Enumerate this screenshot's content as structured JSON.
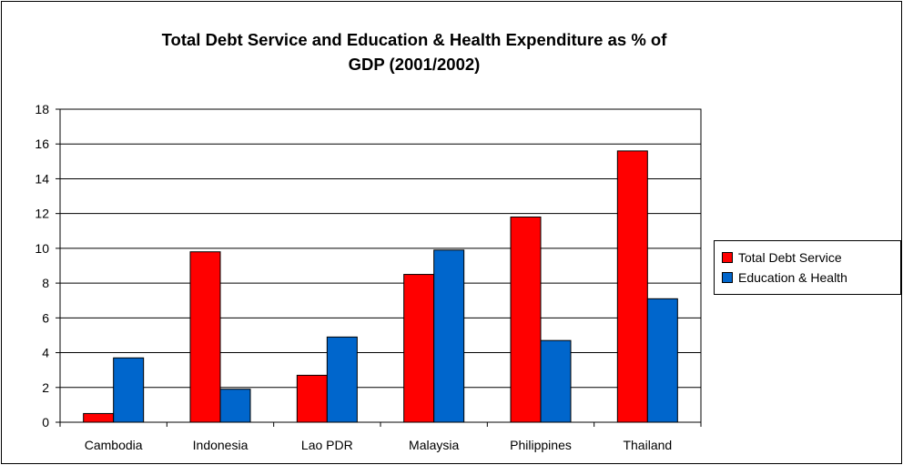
{
  "chart_data": {
    "type": "bar",
    "title": "Total Debt Service and Education & Health Expenditure as % of GDP (2001/2002)",
    "title_lines": [
      "Total Debt Service and Education & Health Expenditure as % of",
      "GDP (2001/2002)"
    ],
    "categories": [
      "Cambodia",
      "Indonesia",
      "Lao PDR",
      "Malaysia",
      "Philippines",
      "Thailand"
    ],
    "series": [
      {
        "name": "Total Debt Service",
        "color": "#ff0000",
        "values": [
          0.5,
          9.8,
          2.7,
          8.5,
          11.8,
          15.6
        ]
      },
      {
        "name": "Education & Health",
        "color": "#0066cc",
        "values": [
          3.7,
          1.9,
          4.9,
          9.9,
          4.7,
          7.1
        ]
      }
    ],
    "ylim": [
      0,
      18
    ],
    "yticks": [
      0,
      2,
      4,
      6,
      8,
      10,
      12,
      14,
      16,
      18
    ],
    "xlabel": "",
    "ylabel": "",
    "grid": true,
    "legend_position": "right"
  }
}
